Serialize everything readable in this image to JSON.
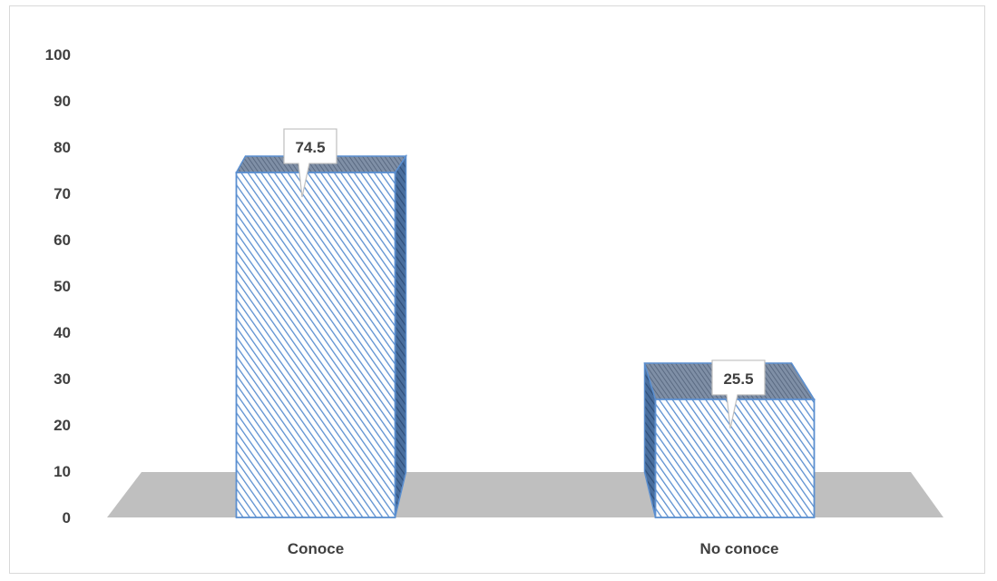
{
  "chart_data": {
    "type": "bar",
    "categories": [
      "Conoce",
      "No conoce"
    ],
    "values": [
      74.5,
      25.5
    ],
    "data_labels": [
      "74.5",
      "25.5"
    ],
    "title": "",
    "xlabel": "",
    "ylabel": "",
    "ylim": [
      0,
      100
    ],
    "yticks": [
      "0",
      "10",
      "20",
      "30",
      "40",
      "50",
      "60",
      "70",
      "80",
      "90",
      "100"
    ],
    "grid": false,
    "legend": "none",
    "style": "3d-column",
    "colors": {
      "bar_outline": "#5b8fd0",
      "bar_hatch": "#5b8fd0",
      "bar_fill": "#ffffff",
      "bar_top": "#7f8fa6",
      "floor": "#bfbfbf",
      "label_box_border": "#bfbfbf",
      "text": "#404040"
    }
  }
}
